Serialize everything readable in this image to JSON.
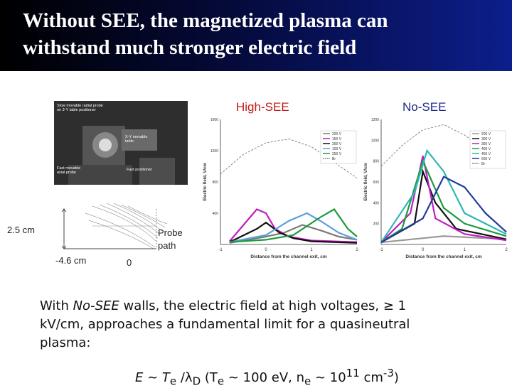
{
  "slide": {
    "title_line1": "Without SEE, the magnetized plasma can",
    "title_line2": "withstand much stronger electric field"
  },
  "photo": {
    "label_slow": "Slow movable radial probe on 3-Y table positioner",
    "label_xy": "X-Y movable table",
    "label_fast_axial": "Fast movable axial probe",
    "label_fast_pos": "Fast positioner"
  },
  "schematic": {
    "label_height": "2.5 cm",
    "label_left": "-4.6 cm",
    "label_zero": "0",
    "label_probe": "Probe",
    "label_path": "path"
  },
  "panels": {
    "high_see": "High-SEE",
    "no_see": "No-SEE"
  },
  "chart_data": [
    {
      "type": "line",
      "title": "High-SEE",
      "xlabel": "Distance from the channel exit, cm",
      "ylabel": "Electric field, V/cm",
      "xlim": [
        -1,
        2
      ],
      "ylim": [
        0,
        1600
      ],
      "x_ticks": [
        "-1",
        "0",
        "1",
        "2"
      ],
      "y_ticks": [
        "1600",
        "1200",
        "800",
        "400"
      ],
      "legend": [
        "200 V",
        "150 V",
        "300 V",
        "100 V",
        "250 V",
        "Br"
      ],
      "series": [
        {
          "name": "200 V",
          "color": "#7a7a7a",
          "x": [
            -0.8,
            0,
            0.4,
            0.8,
            1.2,
            1.6,
            2
          ],
          "y": [
            20,
            100,
            150,
            250,
            180,
            100,
            60
          ]
        },
        {
          "name": "150 V",
          "color": "#c01ec0",
          "x": [
            -0.8,
            -0.2,
            0,
            0.2,
            0.5,
            1,
            2
          ],
          "y": [
            40,
            450,
            400,
            200,
            100,
            50,
            30
          ]
        },
        {
          "name": "300 V",
          "color": "#111111",
          "x": [
            -0.8,
            -0.2,
            0,
            0.3,
            0.6,
            1,
            2
          ],
          "y": [
            30,
            200,
            280,
            150,
            80,
            40,
            20
          ]
        },
        {
          "name": "100 V",
          "color": "#5fa0d8",
          "x": [
            -0.8,
            0,
            0.5,
            0.9,
            1.2,
            1.6,
            2
          ],
          "y": [
            30,
            120,
            300,
            400,
            300,
            150,
            60
          ]
        },
        {
          "name": "250 V",
          "color": "#1d9a3e",
          "x": [
            -0.8,
            0,
            0.6,
            1.2,
            1.5,
            1.8,
            2
          ],
          "y": [
            30,
            60,
            120,
            350,
            450,
            200,
            100
          ]
        },
        {
          "name": "Br",
          "color": "#888888",
          "dashed": true,
          "x": [
            -1,
            -0.5,
            0,
            0.5,
            1,
            1.5,
            2
          ],
          "y": [
            900,
            1150,
            1300,
            1350,
            1250,
            1050,
            850
          ]
        }
      ]
    },
    {
      "type": "line",
      "title": "No-SEE",
      "xlabel": "Distance from the channel exit, cm",
      "ylabel": "Electric field, V/cm",
      "xlim": [
        -1,
        2
      ],
      "ylim": [
        0,
        1200
      ],
      "x_ticks": [
        "-1",
        "0",
        "1",
        "2"
      ],
      "y_ticks": [
        "1200",
        "1000",
        "800",
        "600",
        "400",
        "200"
      ],
      "legend": [
        "200 V",
        "300 V",
        "350 V",
        "400 V",
        "450 V",
        "600 V",
        "Br"
      ],
      "series": [
        {
          "name": "200 V",
          "color": "#999999",
          "x": [
            -1,
            0,
            0.5,
            1,
            1.5,
            2
          ],
          "y": [
            20,
            60,
            80,
            70,
            60,
            50
          ]
        },
        {
          "name": "300 V",
          "color": "#111111",
          "x": [
            -1,
            -0.2,
            0,
            0.3,
            0.8,
            2
          ],
          "y": [
            20,
            200,
            700,
            400,
            150,
            50
          ]
        },
        {
          "name": "350 V",
          "color": "#c01ec0",
          "x": [
            -1,
            -0.3,
            0,
            0.3,
            1,
            2
          ],
          "y": [
            20,
            300,
            850,
            250,
            100,
            40
          ]
        },
        {
          "name": "400 V",
          "color": "#1d9a3e",
          "x": [
            -1,
            -0.5,
            0,
            0.5,
            1,
            2
          ],
          "y": [
            20,
            150,
            800,
            350,
            200,
            80
          ]
        },
        {
          "name": "450 V",
          "color": "#30b6b6",
          "x": [
            -1,
            -0.2,
            0.1,
            0.5,
            1,
            2
          ],
          "y": [
            20,
            500,
            900,
            700,
            300,
            100
          ]
        },
        {
          "name": "600 V",
          "color": "#1e3c9a",
          "x": [
            -1,
            0,
            0.5,
            1,
            1.5,
            2
          ],
          "y": [
            20,
            250,
            650,
            550,
            300,
            120
          ]
        },
        {
          "name": "Br",
          "color": "#888888",
          "dashed": true,
          "x": [
            -1,
            -0.5,
            0,
            0.5,
            1,
            1.5,
            2
          ],
          "y": [
            750,
            950,
            1100,
            1150,
            1050,
            900,
            750
          ]
        }
      ]
    }
  ],
  "text": {
    "p1a": "With ",
    "p1b": "No-SEE",
    "p1c": " walls,  the electric field at high voltages, ≥ 1",
    "p2": "kV/cm,  approaches a fundamental limit for a quasineutral",
    "p3": "plasma:",
    "formula_e": "E ~ T",
    "formula_e_sub": "e",
    "formula_mid": " /λ",
    "formula_d_sub": "D",
    "formula_rest": "  (T",
    "formula_rest_sub": "e",
    "formula_rest2": " ~ 100 eV, n",
    "formula_n_sub": "e",
    "formula_rest3": " ~ 10",
    "formula_sup1": "11",
    "formula_unit": " cm",
    "formula_sup2": "-3",
    "formula_close": ")"
  },
  "colors": {
    "title_bg_dark": "#000000",
    "title_bg_blue": "#0c1e8c",
    "high_see": "#c41a1a",
    "no_see": "#1d2a8a"
  }
}
